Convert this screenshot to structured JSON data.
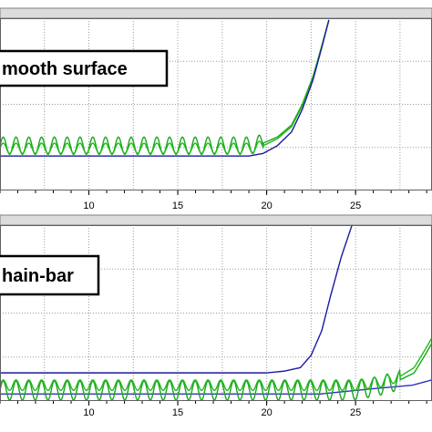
{
  "chart_data": [
    {
      "type": "line",
      "annotation": "mooth surface",
      "xlim": [
        5,
        29.3
      ],
      "ylim": [
        0,
        10
      ],
      "xticks": [
        10,
        15,
        20,
        25
      ],
      "grid": true,
      "series": [
        {
          "color": "#18a818",
          "x": [
            5,
            19,
            19.8,
            20.6,
            21.4,
            22,
            22.6,
            23.1,
            23.5
          ],
          "y": [
            2.6,
            2.6,
            2.75,
            3.1,
            3.8,
            5.0,
            6.6,
            8.4,
            9.9
          ],
          "wave_amplitude": 0.5,
          "wave_period": 0.72,
          "wave_until": 19.8
        },
        {
          "color": "#22b822",
          "x": [
            5,
            19,
            19.8,
            20.6,
            21.4,
            22,
            22.6,
            23.1,
            23.5
          ],
          "y": [
            2.45,
            2.45,
            2.6,
            3.0,
            3.7,
            4.9,
            6.5,
            8.4,
            9.9
          ],
          "wave_amplitude": 0.3,
          "wave_period": 0.72,
          "wave_until": 19.8
        },
        {
          "color": "#1a1aa0",
          "x": [
            5,
            19,
            19.8,
            20.6,
            21.4,
            22,
            22.6,
            23.1,
            23.5
          ],
          "y": [
            2.0,
            2.0,
            2.15,
            2.6,
            3.4,
            4.7,
            6.4,
            8.3,
            9.9
          ]
        }
      ]
    },
    {
      "type": "line",
      "annotation": "hain-bar",
      "xlim": [
        5,
        29.3
      ],
      "ylim": [
        0,
        10
      ],
      "xticks": [
        10,
        15,
        20,
        25
      ],
      "grid": true,
      "series": [
        {
          "color": "#1a1aa0",
          "x": [
            5,
            20,
            21,
            21.9,
            22.5,
            23.1,
            23.6,
            24.2,
            24.8
          ],
          "y": [
            1.6,
            1.6,
            1.7,
            1.9,
            2.6,
            4.0,
            6.0,
            8.2,
            10.0
          ]
        },
        {
          "color": "#3030c0",
          "x": [
            5,
            23,
            26,
            28.2,
            29.3
          ],
          "y": [
            0.4,
            0.4,
            0.7,
            0.9,
            1.2
          ]
        },
        {
          "color": "#18a818",
          "x": [
            5,
            25,
            26.5,
            27.5,
            28.3,
            28.9,
            29.3
          ],
          "y": [
            0.6,
            0.6,
            0.9,
            1.2,
            1.6,
            2.6,
            3.3
          ],
          "wave_amplitude": 0.55,
          "wave_period": 0.72,
          "wave_until": 27.5
        },
        {
          "color": "#22b822",
          "x": [
            5,
            25,
            26.5,
            27.5,
            28.3,
            28.9,
            29.3
          ],
          "y": [
            0.9,
            0.9,
            1.1,
            1.4,
            1.9,
            2.9,
            3.6
          ],
          "wave_amplitude": 0.3,
          "wave_period": 0.72,
          "wave_until": 27.5
        }
      ]
    }
  ]
}
